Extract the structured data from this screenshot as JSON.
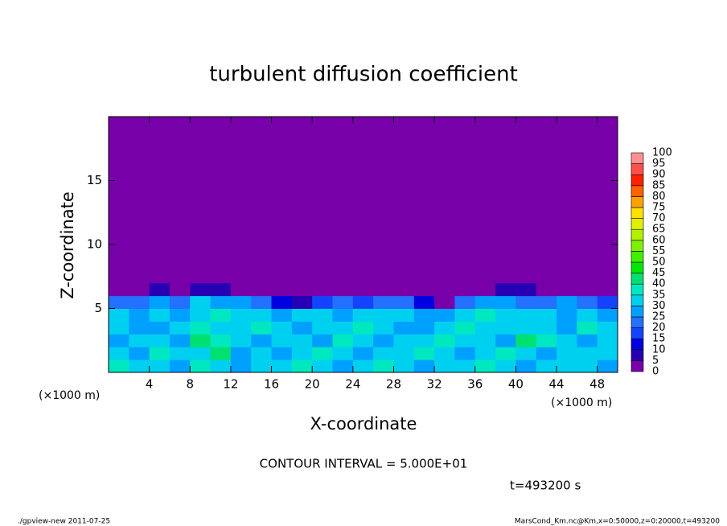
{
  "chart_data": {
    "type": "heatmap",
    "title": "turbulent diffusion coefficient",
    "x_label": "X-coordinate",
    "y_label": "Z-coordinate",
    "x_unit": "(×1000 m)",
    "y_unit": "(×1000 m)",
    "annotation": "CONTOUR INTERVAL = 5.000E+01",
    "time_label": "t=493200 s",
    "footer_left": "./gpview-new  2011-07-25",
    "footer_right": "MarsCond_Km.nc@Km,x=0:50000,z=0:20000,t=493200",
    "xlim": [
      0,
      50
    ],
    "ylim": [
      0,
      20
    ],
    "xticks": [
      4,
      8,
      12,
      16,
      20,
      24,
      28,
      32,
      36,
      40,
      44,
      48
    ],
    "yticks": [
      5,
      10,
      15
    ],
    "x_bins": [
      0,
      2,
      4,
      6,
      8,
      10,
      12,
      14,
      16,
      18,
      20,
      22,
      24,
      26,
      28,
      30,
      32,
      34,
      36,
      38,
      40,
      42,
      44,
      46,
      48,
      50
    ],
    "y_bins": [
      0,
      1,
      2,
      3,
      4,
      5,
      6,
      7,
      8,
      9,
      10,
      11,
      12,
      13,
      14,
      15,
      16,
      17,
      18,
      19,
      20
    ],
    "values": [
      [
        35,
        30,
        32,
        28,
        36,
        30,
        25,
        34,
        32,
        38,
        30,
        28,
        32,
        35,
        30,
        28,
        34,
        30,
        36,
        32,
        28,
        30,
        34,
        30,
        26
      ],
      [
        30,
        25,
        38,
        32,
        30,
        42,
        28,
        30,
        26,
        34,
        36,
        32,
        28,
        30,
        34,
        38,
        30,
        26,
        30,
        36,
        32,
        28,
        30,
        34,
        30
      ],
      [
        28,
        34,
        30,
        26,
        40,
        36,
        30,
        28,
        34,
        30,
        26,
        35,
        30,
        28,
        32,
        30,
        36,
        34,
        30,
        28,
        40,
        36,
        30,
        28,
        32
      ],
      [
        32,
        28,
        26,
        34,
        38,
        30,
        34,
        36,
        30,
        28,
        34,
        30,
        36,
        32,
        28,
        26,
        34,
        38,
        32,
        30,
        34,
        30,
        28,
        36,
        30
      ],
      [
        30,
        26,
        30,
        28,
        34,
        38,
        30,
        32,
        28,
        30,
        32,
        28,
        30,
        34,
        30,
        28,
        26,
        30,
        36,
        34,
        30,
        32,
        28,
        30,
        26
      ],
      [
        22,
        20,
        26,
        24,
        30,
        28,
        26,
        20,
        14,
        6,
        18,
        20,
        16,
        24,
        22,
        10,
        4,
        20,
        26,
        28,
        24,
        22,
        26,
        20,
        18
      ],
      [
        0,
        0,
        5,
        0,
        8,
        5,
        0,
        0,
        0,
        0,
        0,
        0,
        0,
        0,
        0,
        0,
        0,
        0,
        0,
        5,
        5,
        0,
        0,
        0,
        0
      ],
      [
        0,
        0,
        0,
        0,
        0,
        0,
        0,
        0,
        0,
        0,
        0,
        0,
        0,
        0,
        0,
        0,
        0,
        0,
        0,
        0,
        0,
        0,
        0,
        0,
        0
      ],
      [
        0,
        0,
        0,
        0,
        0,
        0,
        0,
        0,
        0,
        0,
        0,
        0,
        0,
        0,
        0,
        0,
        0,
        0,
        0,
        0,
        0,
        0,
        0,
        0,
        0
      ],
      [
        0,
        0,
        0,
        0,
        0,
        0,
        0,
        0,
        0,
        0,
        0,
        0,
        0,
        0,
        0,
        0,
        0,
        0,
        0,
        0,
        0,
        0,
        0,
        0,
        0
      ],
      [
        0,
        0,
        0,
        0,
        0,
        0,
        0,
        0,
        0,
        0,
        0,
        0,
        0,
        0,
        0,
        0,
        0,
        0,
        0,
        0,
        0,
        0,
        0,
        0,
        0
      ],
      [
        0,
        0,
        0,
        0,
        0,
        0,
        0,
        0,
        0,
        0,
        0,
        0,
        0,
        0,
        0,
        0,
        0,
        0,
        0,
        0,
        0,
        0,
        0,
        0,
        0
      ],
      [
        0,
        0,
        0,
        0,
        0,
        0,
        0,
        0,
        0,
        0,
        0,
        0,
        0,
        0,
        0,
        0,
        0,
        0,
        0,
        0,
        0,
        0,
        0,
        0,
        0
      ],
      [
        0,
        0,
        0,
        0,
        0,
        0,
        0,
        0,
        0,
        0,
        0,
        0,
        0,
        0,
        0,
        0,
        0,
        0,
        0,
        0,
        0,
        0,
        0,
        0,
        0
      ],
      [
        0,
        0,
        0,
        0,
        0,
        0,
        0,
        0,
        0,
        0,
        0,
        0,
        0,
        0,
        0,
        0,
        0,
        0,
        0,
        0,
        0,
        0,
        0,
        0,
        0
      ],
      [
        0,
        0,
        0,
        0,
        0,
        0,
        0,
        0,
        0,
        0,
        0,
        0,
        0,
        0,
        0,
        0,
        0,
        0,
        0,
        0,
        0,
        0,
        0,
        0,
        0
      ],
      [
        0,
        0,
        0,
        0,
        0,
        0,
        0,
        0,
        0,
        0,
        0,
        0,
        0,
        0,
        0,
        0,
        0,
        0,
        0,
        0,
        0,
        0,
        0,
        0,
        0
      ],
      [
        0,
        0,
        0,
        0,
        0,
        0,
        0,
        0,
        0,
        0,
        0,
        0,
        0,
        0,
        0,
        0,
        0,
        0,
        0,
        0,
        0,
        0,
        0,
        0,
        0
      ],
      [
        0,
        0,
        0,
        0,
        0,
        0,
        0,
        0,
        0,
        0,
        0,
        0,
        0,
        0,
        0,
        0,
        0,
        0,
        0,
        0,
        0,
        0,
        0,
        0,
        0
      ],
      [
        0,
        0,
        0,
        0,
        0,
        0,
        0,
        0,
        0,
        0,
        0,
        0,
        0,
        0,
        0,
        0,
        0,
        0,
        0,
        0,
        0,
        0,
        0,
        0,
        0
      ]
    ],
    "levels": [
      0,
      5,
      10,
      15,
      20,
      25,
      30,
      35,
      40,
      45,
      50,
      55,
      60,
      65,
      70,
      75,
      80,
      85,
      90,
      95,
      100
    ],
    "colors": [
      "#7800a8",
      "#2800b4",
      "#0000e0",
      "#1444ff",
      "#2470ff",
      "#00a0ff",
      "#00d0f0",
      "#00e8c0",
      "#00e070",
      "#00e800",
      "#40f000",
      "#80f000",
      "#b0f000",
      "#e0f000",
      "#ffe000",
      "#ffa000",
      "#ff6000",
      "#ff2000",
      "#ff5050",
      "#ff9090"
    ]
  }
}
